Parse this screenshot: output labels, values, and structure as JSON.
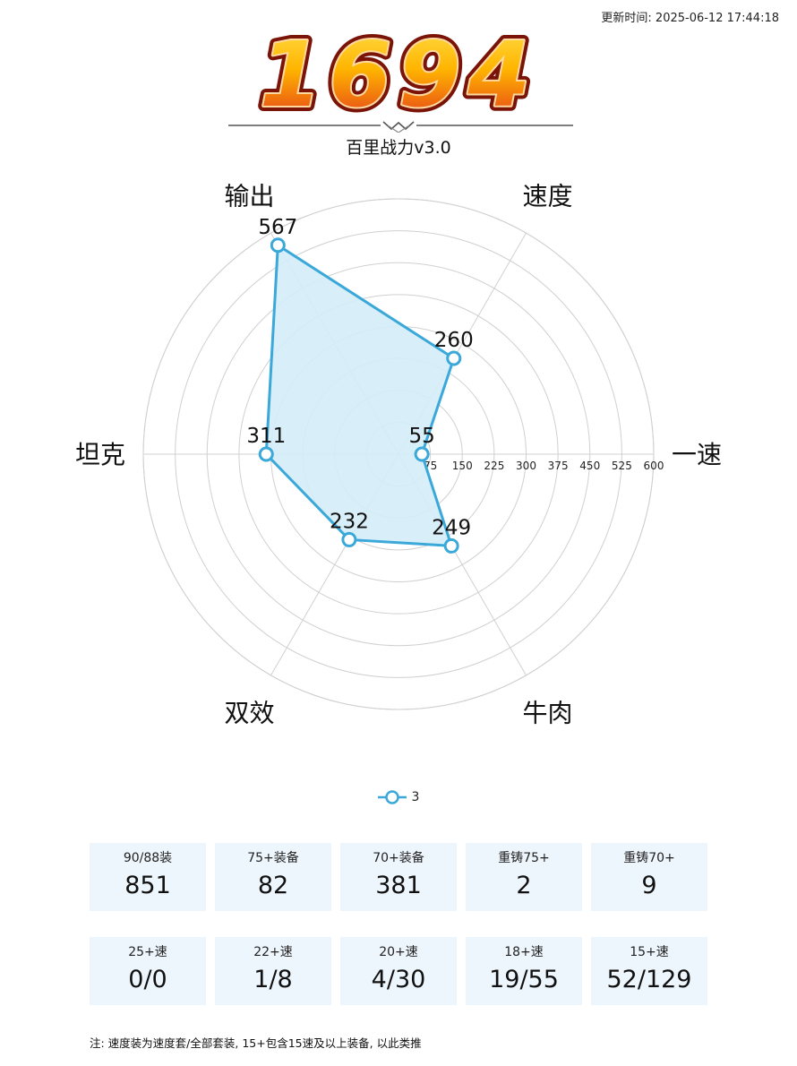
{
  "header": {
    "updated_label": "更新时间:",
    "updated_value": "2025-06-12 17:44:18",
    "score": "1694",
    "subtitle": "百里战力v3.0"
  },
  "colors": {
    "series": "#3aa8d8",
    "series_fill": "#d4ecf8",
    "grid": "#d0d0d0",
    "stat_bg": "#eef6fd",
    "score_outer": "#8a1a10",
    "score_top": "#ffd200",
    "score_bottom": "#e0301e"
  },
  "chart_data": {
    "type": "radar",
    "indicators": [
      "一速",
      "速度",
      "输出",
      "坦克",
      "双效",
      "牛肉"
    ],
    "axis_ticks": [
      75,
      150,
      225,
      300,
      375,
      450,
      525,
      600
    ],
    "max": 600,
    "series": [
      {
        "name": "3",
        "values": [
          55,
          260,
          567,
          311,
          232,
          249
        ]
      }
    ],
    "data_labels": [
      "55",
      "260",
      "567",
      "311",
      "232",
      "249"
    ],
    "legend": {
      "position": "bottom"
    },
    "grid": true
  },
  "stats": {
    "row1": [
      {
        "label": "90/88装",
        "value": "851"
      },
      {
        "label": "75+装备",
        "value": "82"
      },
      {
        "label": "70+装备",
        "value": "381"
      },
      {
        "label": "重铸75+",
        "value": "2"
      },
      {
        "label": "重铸70+",
        "value": "9"
      }
    ],
    "row2": [
      {
        "label": "25+速",
        "value": "0/0"
      },
      {
        "label": "22+速",
        "value": "1/8"
      },
      {
        "label": "20+速",
        "value": "4/30"
      },
      {
        "label": "18+速",
        "value": "19/55"
      },
      {
        "label": "15+速",
        "value": "52/129"
      }
    ]
  },
  "note": "注: 速度装为速度套/全部套装, 15+包含15速及以上装备, 以此类推"
}
